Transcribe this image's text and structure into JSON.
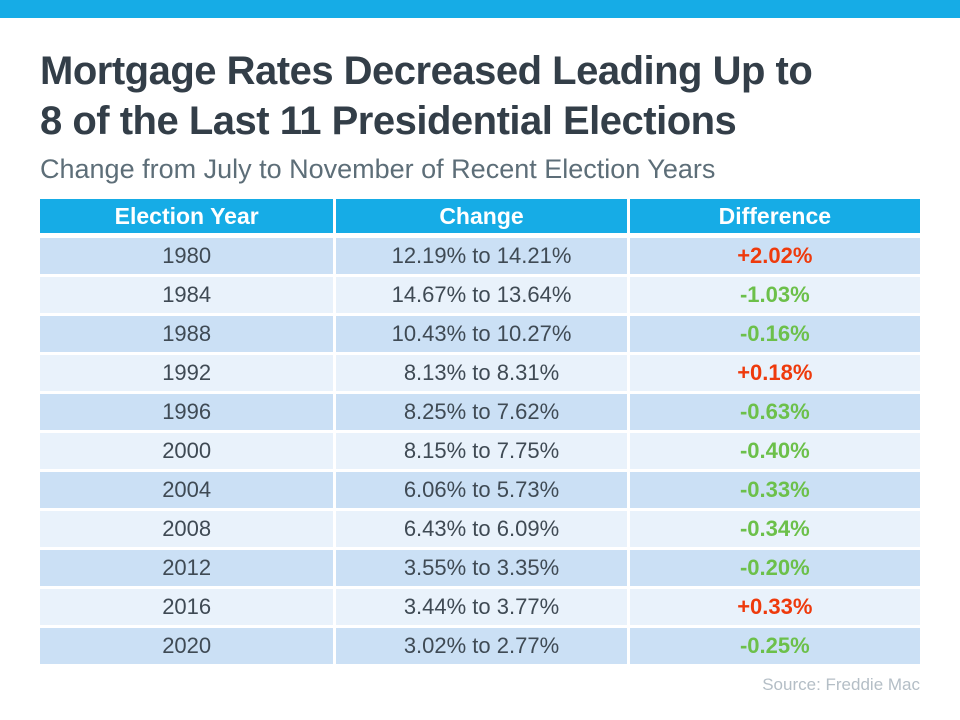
{
  "page": {
    "title_line1": "Mortgage Rates Decreased Leading Up to",
    "title_line2": "8 of the Last 11 Presidential Elections",
    "subtitle": "Change from July to November of Recent Election Years",
    "source": "Source: Freddie Mac"
  },
  "colors": {
    "accent_blue": "#16ACE6",
    "row_shaded": "#CBE0F5",
    "row_light": "#E9F2FB",
    "increase_red": "#EE3A0C",
    "decrease_green": "#6CC04A",
    "title_dark": "#333E48",
    "subtitle_gray": "#5D6E78",
    "source_gray": "#B4BEC6"
  },
  "chart_data": {
    "type": "table",
    "title": "Mortgage Rates Decreased Leading Up to 8 of the Last 11 Presidential Elections",
    "subtitle": "Change from July to November of Recent Election Years",
    "source": "Source: Freddie Mac",
    "columns": [
      "Election Year",
      "Change",
      "Difference"
    ],
    "rows": [
      {
        "year": "1980",
        "change": "12.19% to 14.21%",
        "difference": "+2.02%",
        "positive": true
      },
      {
        "year": "1984",
        "change": "14.67% to 13.64%",
        "difference": "-1.03%",
        "positive": false
      },
      {
        "year": "1988",
        "change": "10.43% to 10.27%",
        "difference": "-0.16%",
        "positive": false
      },
      {
        "year": "1992",
        "change": "8.13% to 8.31%",
        "difference": "+0.18%",
        "positive": true
      },
      {
        "year": "1996",
        "change": "8.25% to 7.62%",
        "difference": "-0.63%",
        "positive": false
      },
      {
        "year": "2000",
        "change": "8.15% to 7.75%",
        "difference": "-0.40%",
        "positive": false
      },
      {
        "year": "2004",
        "change": "6.06% to 5.73%",
        "difference": "-0.33%",
        "positive": false
      },
      {
        "year": "2008",
        "change": "6.43% to 6.09%",
        "difference": "-0.34%",
        "positive": false
      },
      {
        "year": "2012",
        "change": "3.55% to 3.35%",
        "difference": "-0.20%",
        "positive": false
      },
      {
        "year": "2016",
        "change": "3.44% to 3.77%",
        "difference": "+0.33%",
        "positive": true
      },
      {
        "year": "2020",
        "change": "3.02% to 2.77%",
        "difference": "-0.25%",
        "positive": false
      }
    ]
  }
}
